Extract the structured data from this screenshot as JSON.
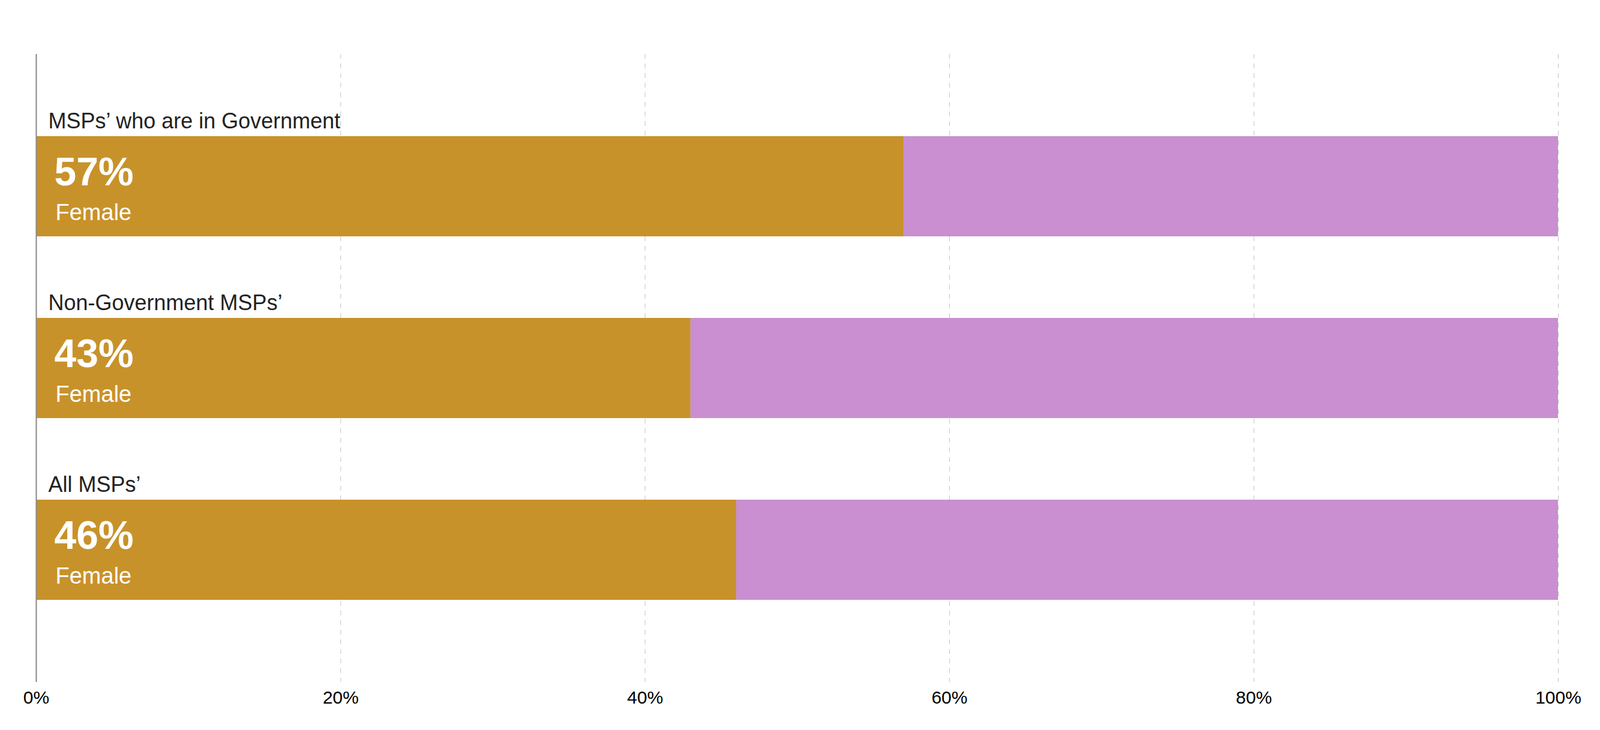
{
  "chart_data": {
    "type": "bar",
    "orientation": "horizontal",
    "stacked": true,
    "categories": [
      "MSPs’ who are in Government",
      "Non-Government MSPs’",
      "All MSPs’"
    ],
    "series": [
      {
        "name": "Female",
        "color": "#C8922A",
        "values": [
          57,
          43,
          46
        ],
        "data_labels": true,
        "value_labels": [
          "57%",
          "43%",
          "46%"
        ]
      },
      {
        "color": "#C98FD0",
        "values": [
          43,
          57,
          54
        ]
      }
    ],
    "xlim": [
      0,
      100
    ],
    "xticks": [
      {
        "value": 0,
        "label": "0%"
      },
      {
        "value": 20,
        "label": "20%"
      },
      {
        "value": 40,
        "label": "40%"
      },
      {
        "value": 60,
        "label": "60%"
      },
      {
        "value": 80,
        "label": "80%"
      },
      {
        "value": 100,
        "label": "100%"
      }
    ],
    "grid": true
  }
}
